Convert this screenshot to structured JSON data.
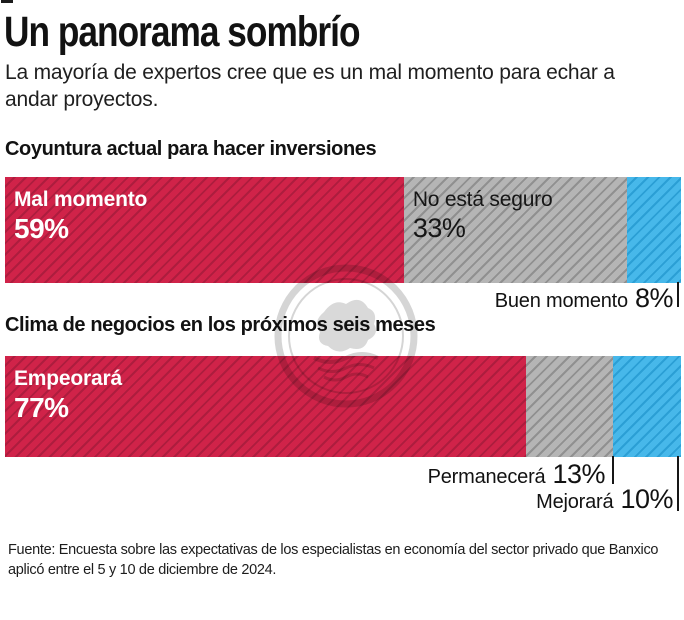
{
  "palette": {
    "ink": "#141414",
    "red": "#d02349",
    "red-stripe": "#ad1d3e",
    "gray": "#b5b5b5",
    "gray-stripe": "#909090",
    "blue": "#47b8ea",
    "blue-stripe": "#2b9fd5",
    "white": "#ffffff"
  },
  "header": {
    "title": "Un panorama sombrío",
    "subtitle": "La mayoría de expertos cree que es un mal momento para echar a andar proyectos."
  },
  "charts": [
    {
      "title": "Coyuntura actual para hacer inversiones",
      "segments": [
        {
          "label": "Mal momento",
          "value": 59,
          "display": "59%"
        },
        {
          "label": "No está seguro",
          "value": 33,
          "display": "33%"
        },
        {
          "label": "Buen momento",
          "value": 8,
          "display": "8%"
        }
      ]
    },
    {
      "title": "Clima de negocios en los próximos seis meses",
      "segments": [
        {
          "label": "Empeorará",
          "value": 77,
          "display": "77%"
        },
        {
          "label": "Permanecerá",
          "value": 13,
          "display": "13%"
        },
        {
          "label": "Mejorará",
          "value": 10,
          "display": "10%"
        }
      ]
    }
  ],
  "chart_data": [
    {
      "type": "bar",
      "orientation": "horizontal",
      "stacked": true,
      "title": "Coyuntura actual para hacer inversiones",
      "categories": [
        "Mal momento",
        "No está seguro",
        "Buen momento"
      ],
      "values": [
        59,
        33,
        8
      ],
      "unit": "%",
      "xlim": [
        0,
        100
      ],
      "colors": [
        "#d02349",
        "#b5b5b5",
        "#47b8ea"
      ],
      "pattern": "diagonal-hatch",
      "legend": "labels-on-segments",
      "grid": false
    },
    {
      "type": "bar",
      "orientation": "horizontal",
      "stacked": true,
      "title": "Clima de negocios en los próximos seis meses",
      "categories": [
        "Empeorará",
        "Permanecerá",
        "Mejorará"
      ],
      "values": [
        77,
        13,
        10
      ],
      "unit": "%",
      "xlim": [
        0,
        100
      ],
      "colors": [
        "#d02349",
        "#b5b5b5",
        "#47b8ea"
      ],
      "pattern": "diagonal-hatch",
      "legend": "labels-on-segments",
      "grid": false
    }
  ],
  "footer": {
    "source": "Fuente: Encuesta sobre las expectativas de los especialistas en economía del sector privado que Banxico aplicó entre el 5 y 10 de diciembre de 2024."
  },
  "watermark": {
    "icon": "circular-seal-watermark"
  }
}
